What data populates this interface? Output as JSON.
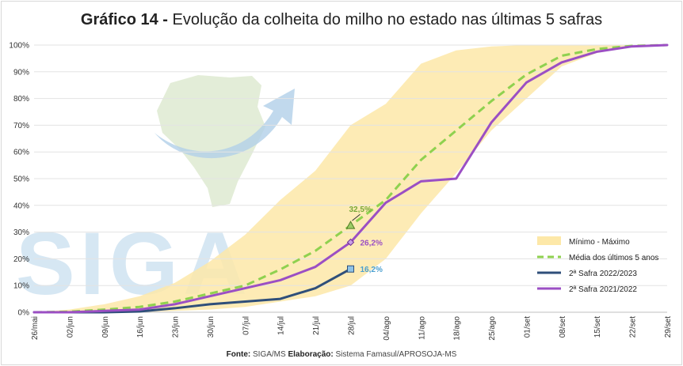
{
  "chart_data": {
    "type": "line",
    "title_bold": "Gráfico 14 -",
    "title_rest": "Evolução da colheita do milho no estado nas últimas 5 safras",
    "categories": [
      "26/mai",
      "02/jun",
      "09/jun",
      "16/jun",
      "23/jun",
      "30/jun",
      "07/jul",
      "14/jul",
      "21/jul",
      "28/jul",
      "04/ago",
      "11/ago",
      "18/ago",
      "25/ago",
      "01/set",
      "08/set",
      "15/set",
      "22/set",
      "29/set"
    ],
    "yticks": [
      "0%",
      "10%",
      "20%",
      "30%",
      "40%",
      "50%",
      "60%",
      "70%",
      "80%",
      "90%",
      "100%"
    ],
    "ylim": [
      0,
      100
    ],
    "band": {
      "name": "Mínimo - Máximo",
      "color": "#fde8a8",
      "min": [
        0,
        0,
        0,
        0,
        0.5,
        1,
        2,
        4,
        6,
        10,
        20,
        37,
        52,
        68,
        80,
        92,
        97,
        99.5,
        100
      ],
      "max": [
        0,
        1,
        3,
        6,
        11,
        19,
        29,
        42,
        53,
        70,
        78,
        93,
        98,
        99.5,
        100,
        100,
        100,
        100,
        100
      ]
    },
    "series": [
      {
        "name": "Média dos últimos 5 anos",
        "color": "#8fd14f",
        "dashed": true,
        "values": [
          0,
          0.2,
          1,
          2,
          4,
          7,
          10,
          16,
          23,
          32.5,
          42,
          57,
          68,
          79,
          89,
          96,
          98.5,
          99.7,
          100
        ]
      },
      {
        "name": "2ª Safra 2022/2023",
        "color": "#2f4f7a",
        "dashed": false,
        "values": [
          0,
          0,
          0,
          0.3,
          1.5,
          3,
          4,
          5,
          9,
          16.2,
          null,
          null,
          null,
          null,
          null,
          null,
          null,
          null,
          null
        ]
      },
      {
        "name": "2ª Safra 2021/2022",
        "color": "#9b4fc4",
        "dashed": false,
        "values": [
          0,
          0,
          0.5,
          1,
          3,
          6,
          9,
          12,
          17,
          26.2,
          41,
          49,
          50,
          71,
          86,
          93.5,
          97.5,
          99.5,
          100
        ]
      }
    ],
    "annotations": [
      {
        "label": "32,5%",
        "color": "#78a83a",
        "series": 0,
        "index": 9
      },
      {
        "label": "26,2%",
        "color": "#9b4fc4",
        "series": 2,
        "index": 9
      },
      {
        "label": "16,2%",
        "color": "#4a9fcf",
        "series": 1,
        "index": 9
      }
    ],
    "watermark": "SIGA"
  },
  "footer": {
    "fonte_label": "Fonte:",
    "fonte_value": "SIGA/MS",
    "elab_label": "Elaboração:",
    "elab_value": "Sistema Famasul/APROSOJA-MS"
  }
}
